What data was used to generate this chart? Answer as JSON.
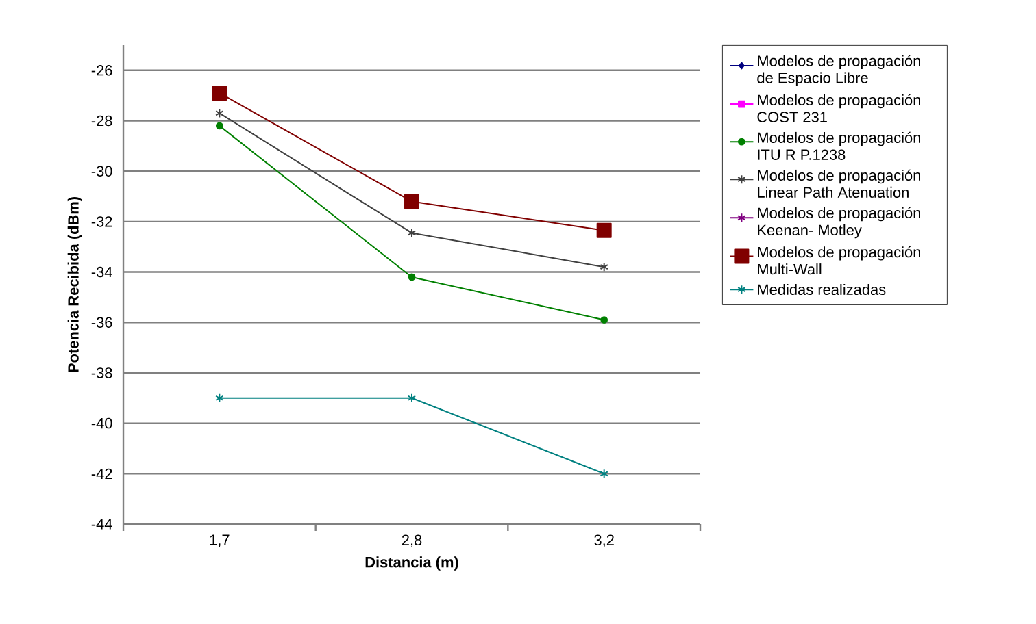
{
  "chart_data": {
    "type": "line",
    "xlabel": "Distancia (m)",
    "ylabel": "Potencia Recibida (dBm)",
    "categories": [
      "1,7",
      "2,8",
      "3,2"
    ],
    "series": [
      {
        "name": "Modelos de propagación de Espacio Libre",
        "color": "#000080",
        "marker": "diamond",
        "values": [
          null,
          null,
          null
        ]
      },
      {
        "name": "Modelos de propagación COST 231",
        "color": "#ff00ff",
        "marker": "square",
        "values": [
          null,
          null,
          null
        ]
      },
      {
        "name": "Modelos de propagación ITU R P.1238",
        "color": "#008000",
        "marker": "circle",
        "values": [
          -28.2,
          -34.2,
          -35.9
        ]
      },
      {
        "name": "Modelos de propagación Linear Path Atenuation",
        "color": "#404040",
        "marker": "cross",
        "values": [
          -27.7,
          -32.45,
          -33.8
        ]
      },
      {
        "name": "Modelos de propagación Keenan- Motley",
        "color": "#800080",
        "marker": "cross",
        "values": [
          null,
          null,
          null
        ]
      },
      {
        "name": "Modelos de propagación Multi-Wall",
        "color": "#800000",
        "marker": "square",
        "values": [
          -26.9,
          -31.2,
          -32.35
        ]
      },
      {
        "name": "Medidas realizadas",
        "color": "#008080",
        "marker": "cross",
        "values": [
          -39,
          -39,
          -42
        ]
      }
    ],
    "ylim": [
      -44,
      -25
    ],
    "yticks": [
      -44,
      -42,
      -40,
      -38,
      -36,
      -34,
      -32,
      -30,
      -28,
      -26
    ],
    "grid": "y",
    "legend": "right",
    "line_style": "solid"
  }
}
